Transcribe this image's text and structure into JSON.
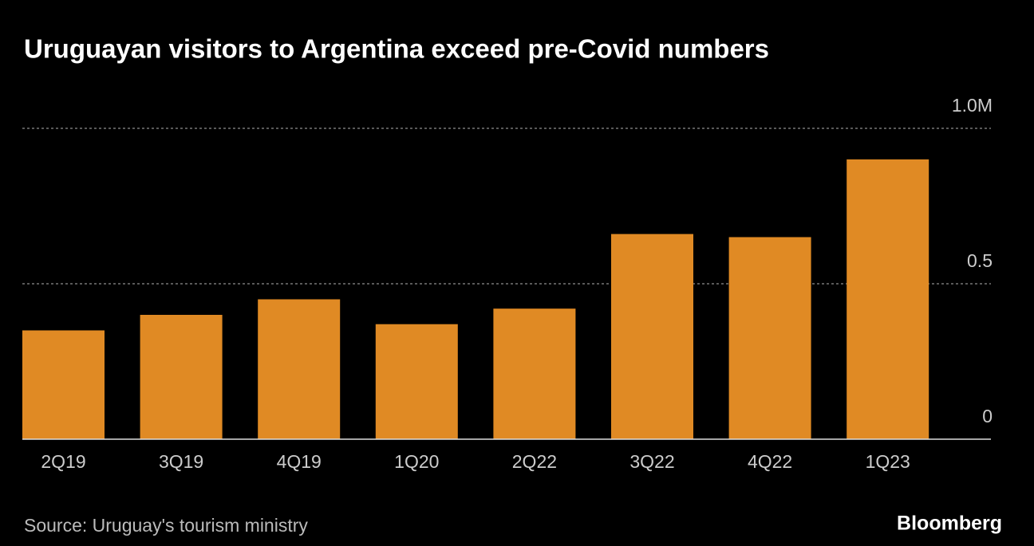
{
  "chart_data": {
    "type": "bar",
    "title": "Uruguayan visitors to Argentina exceed pre-Covid numbers",
    "categories": [
      "2Q19",
      "3Q19",
      "4Q19",
      "1Q20",
      "2Q22",
      "3Q22",
      "4Q22",
      "1Q23"
    ],
    "values": [
      0.35,
      0.4,
      0.45,
      0.37,
      0.42,
      0.66,
      0.65,
      0.9
    ],
    "color": "#e08a24",
    "ylim": [
      0,
      1
    ],
    "yticks": [
      0,
      0.5,
      {
        "value": 1,
        "label": "1.0M"
      }
    ],
    "grid": true,
    "source": "Source: Uruguay's tourism ministry",
    "brand": "Bloomberg"
  }
}
